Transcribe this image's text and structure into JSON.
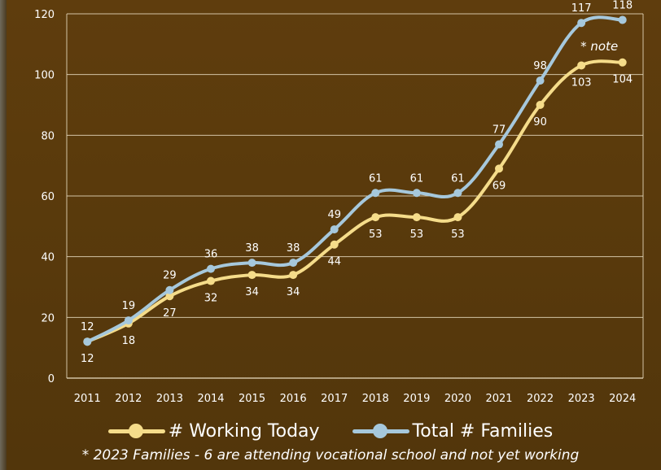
{
  "chart_data": {
    "type": "line",
    "categories": [
      "2011",
      "2012",
      "2013",
      "2014",
      "2015",
      "2016",
      "2017",
      "2018",
      "2019",
      "2020",
      "2021",
      "2022",
      "2023",
      "2024"
    ],
    "series": [
      {
        "name": "# Working Today",
        "color": "#f5dc8a",
        "values": [
          12,
          18,
          27,
          32,
          34,
          34,
          44,
          53,
          53,
          53,
          69,
          90,
          103,
          104
        ]
      },
      {
        "name": "Total # Families",
        "color": "#a6c8dc",
        "values": [
          12,
          19,
          29,
          36,
          38,
          38,
          49,
          61,
          61,
          61,
          77,
          98,
          117,
          118
        ]
      }
    ],
    "ylim": [
      0,
      120
    ],
    "yticks": [
      0,
      20,
      40,
      60,
      80,
      100,
      120
    ],
    "grid": true,
    "legend_position": "bottom",
    "annotation": "* note"
  },
  "footnote": "* 2023 Families - 6 are attending vocational school and not yet working"
}
